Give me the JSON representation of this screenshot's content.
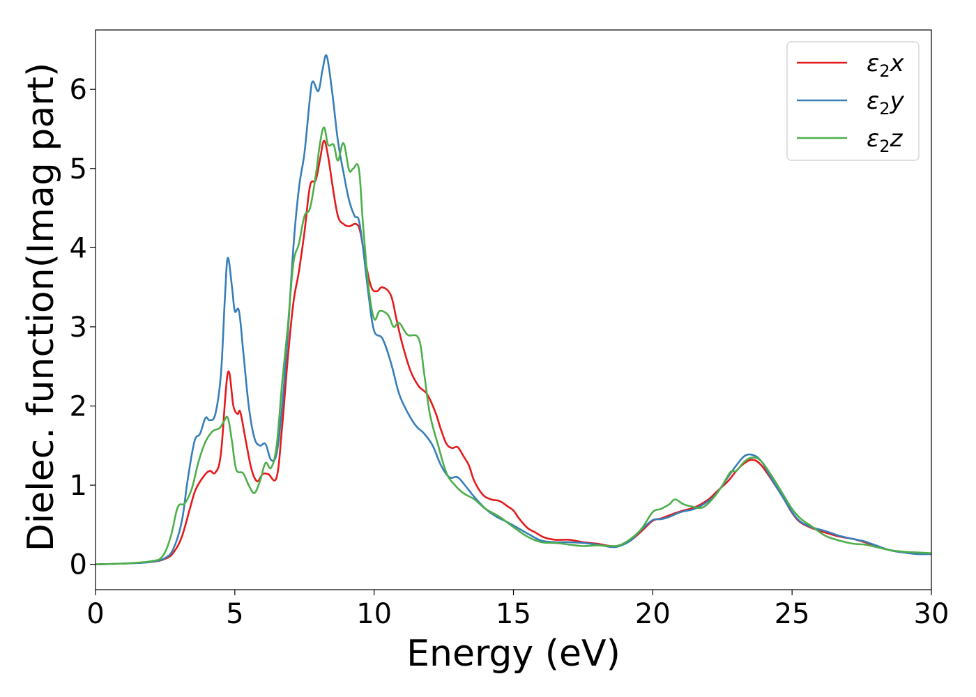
{
  "chart_data": {
    "type": "line",
    "title": "",
    "xlabel": "Energy (eV)",
    "ylabel": "Dielec. function(Imag part)",
    "xlim": [
      0,
      30
    ],
    "ylim": [
      -0.32,
      6.75
    ],
    "xticks": [
      0,
      5,
      10,
      15,
      20,
      25,
      30
    ],
    "yticks": [
      0,
      1,
      2,
      3,
      4,
      5,
      6
    ],
    "xtick_labels": [
      "0",
      "5",
      "10",
      "15",
      "20",
      "25",
      "30"
    ],
    "ytick_labels": [
      "0",
      "1",
      "2",
      "3",
      "4",
      "5",
      "6"
    ],
    "grid": false,
    "legend_position": "top-right",
    "series": [
      {
        "name": "ε2x",
        "legend": {
          "symbol": "ε",
          "sub": "2",
          "var": "x"
        },
        "color": "#e41a1c",
        "points": [
          [
            0,
            0
          ],
          [
            1,
            0.01
          ],
          [
            2,
            0.03
          ],
          [
            2.5,
            0.07
          ],
          [
            2.8,
            0.15
          ],
          [
            3.1,
            0.35
          ],
          [
            3.4,
            0.72
          ],
          [
            3.6,
            0.95
          ],
          [
            3.9,
            1.12
          ],
          [
            4.1,
            1.18
          ],
          [
            4.3,
            1.16
          ],
          [
            4.5,
            1.4
          ],
          [
            4.75,
            2.42
          ],
          [
            4.95,
            2.0
          ],
          [
            5.1,
            1.9
          ],
          [
            5.2,
            1.92
          ],
          [
            5.4,
            1.55
          ],
          [
            5.6,
            1.2
          ],
          [
            5.8,
            1.05
          ],
          [
            6.0,
            1.14
          ],
          [
            6.2,
            1.14
          ],
          [
            6.5,
            1.1
          ],
          [
            6.7,
            1.75
          ],
          [
            6.9,
            2.6
          ],
          [
            7.1,
            3.3
          ],
          [
            7.3,
            3.7
          ],
          [
            7.5,
            4.2
          ],
          [
            7.7,
            4.78
          ],
          [
            7.9,
            4.85
          ],
          [
            8.05,
            5.1
          ],
          [
            8.2,
            5.35
          ],
          [
            8.35,
            5.15
          ],
          [
            8.5,
            4.8
          ],
          [
            8.7,
            4.4
          ],
          [
            8.9,
            4.3
          ],
          [
            9.1,
            4.27
          ],
          [
            9.35,
            4.3
          ],
          [
            9.5,
            4.2
          ],
          [
            9.7,
            3.8
          ],
          [
            9.9,
            3.5
          ],
          [
            10.1,
            3.45
          ],
          [
            10.3,
            3.5
          ],
          [
            10.6,
            3.4
          ],
          [
            10.8,
            3.1
          ],
          [
            11.0,
            2.8
          ],
          [
            11.3,
            2.45
          ],
          [
            11.6,
            2.25
          ],
          [
            11.9,
            2.15
          ],
          [
            12.2,
            1.92
          ],
          [
            12.4,
            1.7
          ],
          [
            12.6,
            1.52
          ],
          [
            12.8,
            1.47
          ],
          [
            13.0,
            1.48
          ],
          [
            13.2,
            1.37
          ],
          [
            13.4,
            1.25
          ],
          [
            13.6,
            1.05
          ],
          [
            13.9,
            0.88
          ],
          [
            14.2,
            0.82
          ],
          [
            14.5,
            0.8
          ],
          [
            14.8,
            0.73
          ],
          [
            15.0,
            0.68
          ],
          [
            15.2,
            0.58
          ],
          [
            15.5,
            0.46
          ],
          [
            15.8,
            0.4
          ],
          [
            16.1,
            0.34
          ],
          [
            16.5,
            0.31
          ],
          [
            17.0,
            0.31
          ],
          [
            17.5,
            0.28
          ],
          [
            18.0,
            0.26
          ],
          [
            18.5,
            0.23
          ],
          [
            18.8,
            0.24
          ],
          [
            19.2,
            0.3
          ],
          [
            19.6,
            0.42
          ],
          [
            20.0,
            0.55
          ],
          [
            20.3,
            0.58
          ],
          [
            20.6,
            0.62
          ],
          [
            21.0,
            0.67
          ],
          [
            21.5,
            0.72
          ],
          [
            22.0,
            0.82
          ],
          [
            22.3,
            0.92
          ],
          [
            22.7,
            1.05
          ],
          [
            23.0,
            1.18
          ],
          [
            23.3,
            1.28
          ],
          [
            23.6,
            1.32
          ],
          [
            23.9,
            1.25
          ],
          [
            24.3,
            1.05
          ],
          [
            24.7,
            0.83
          ],
          [
            25.0,
            0.65
          ],
          [
            25.3,
            0.53
          ],
          [
            25.7,
            0.46
          ],
          [
            26.2,
            0.4
          ],
          [
            26.7,
            0.35
          ],
          [
            27.2,
            0.32
          ],
          [
            27.6,
            0.28
          ],
          [
            28.0,
            0.23
          ],
          [
            28.5,
            0.18
          ],
          [
            29.0,
            0.15
          ],
          [
            29.5,
            0.14
          ],
          [
            30,
            0.13
          ]
        ]
      },
      {
        "name": "ε2y",
        "legend": {
          "symbol": "ε",
          "sub": "2",
          "var": "y"
        },
        "color": "#377eb8",
        "points": [
          [
            0,
            0
          ],
          [
            1,
            0.01
          ],
          [
            2,
            0.03
          ],
          [
            2.5,
            0.08
          ],
          [
            2.8,
            0.2
          ],
          [
            3.1,
            0.55
          ],
          [
            3.3,
            1.05
          ],
          [
            3.55,
            1.55
          ],
          [
            3.75,
            1.65
          ],
          [
            3.95,
            1.85
          ],
          [
            4.1,
            1.82
          ],
          [
            4.3,
            1.9
          ],
          [
            4.5,
            2.4
          ],
          [
            4.65,
            3.4
          ],
          [
            4.75,
            3.87
          ],
          [
            4.9,
            3.5
          ],
          [
            5.0,
            3.2
          ],
          [
            5.15,
            3.2
          ],
          [
            5.3,
            2.7
          ],
          [
            5.5,
            2.0
          ],
          [
            5.7,
            1.6
          ],
          [
            5.9,
            1.5
          ],
          [
            6.1,
            1.52
          ],
          [
            6.3,
            1.32
          ],
          [
            6.5,
            1.4
          ],
          [
            6.7,
            2.0
          ],
          [
            6.9,
            2.9
          ],
          [
            7.1,
            4.0
          ],
          [
            7.3,
            4.75
          ],
          [
            7.5,
            5.2
          ],
          [
            7.7,
            5.9
          ],
          [
            7.8,
            6.1
          ],
          [
            8.0,
            5.98
          ],
          [
            8.15,
            6.25
          ],
          [
            8.3,
            6.42
          ],
          [
            8.5,
            5.95
          ],
          [
            8.7,
            5.35
          ],
          [
            8.9,
            4.95
          ],
          [
            9.1,
            4.6
          ],
          [
            9.3,
            4.4
          ],
          [
            9.45,
            4.35
          ],
          [
            9.6,
            4.0
          ],
          [
            9.8,
            3.4
          ],
          [
            10.0,
            2.95
          ],
          [
            10.3,
            2.85
          ],
          [
            10.6,
            2.55
          ],
          [
            10.9,
            2.15
          ],
          [
            11.2,
            1.92
          ],
          [
            11.5,
            1.75
          ],
          [
            11.8,
            1.65
          ],
          [
            12.1,
            1.5
          ],
          [
            12.4,
            1.25
          ],
          [
            12.7,
            1.1
          ],
          [
            13.0,
            1.1
          ],
          [
            13.3,
            0.98
          ],
          [
            13.6,
            0.85
          ],
          [
            14.0,
            0.7
          ],
          [
            14.4,
            0.6
          ],
          [
            14.8,
            0.53
          ],
          [
            15.2,
            0.45
          ],
          [
            15.6,
            0.37
          ],
          [
            16.0,
            0.3
          ],
          [
            16.5,
            0.28
          ],
          [
            17.0,
            0.28
          ],
          [
            17.5,
            0.27
          ],
          [
            18.0,
            0.25
          ],
          [
            18.5,
            0.22
          ],
          [
            18.8,
            0.23
          ],
          [
            19.2,
            0.3
          ],
          [
            19.6,
            0.44
          ],
          [
            20.0,
            0.56
          ],
          [
            20.3,
            0.57
          ],
          [
            20.6,
            0.6
          ],
          [
            21.0,
            0.66
          ],
          [
            21.5,
            0.7
          ],
          [
            22.0,
            0.8
          ],
          [
            22.3,
            0.9
          ],
          [
            22.7,
            1.1
          ],
          [
            23.0,
            1.25
          ],
          [
            23.3,
            1.37
          ],
          [
            23.6,
            1.38
          ],
          [
            23.9,
            1.3
          ],
          [
            24.3,
            1.06
          ],
          [
            24.7,
            0.83
          ],
          [
            25.0,
            0.66
          ],
          [
            25.3,
            0.54
          ],
          [
            25.7,
            0.47
          ],
          [
            26.2,
            0.42
          ],
          [
            26.7,
            0.36
          ],
          [
            27.2,
            0.32
          ],
          [
            27.6,
            0.29
          ],
          [
            28.0,
            0.24
          ],
          [
            28.5,
            0.18
          ],
          [
            29.0,
            0.15
          ],
          [
            29.5,
            0.13
          ],
          [
            30,
            0.13
          ]
        ]
      },
      {
        "name": "ε2z",
        "legend": {
          "symbol": "ε",
          "sub": "2",
          "var": "z"
        },
        "color": "#4daf4a",
        "points": [
          [
            0,
            0
          ],
          [
            1,
            0.01
          ],
          [
            2,
            0.04
          ],
          [
            2.4,
            0.1
          ],
          [
            2.7,
            0.35
          ],
          [
            2.95,
            0.72
          ],
          [
            3.2,
            0.77
          ],
          [
            3.45,
            0.95
          ],
          [
            3.7,
            1.3
          ],
          [
            3.95,
            1.55
          ],
          [
            4.2,
            1.68
          ],
          [
            4.45,
            1.72
          ],
          [
            4.6,
            1.8
          ],
          [
            4.75,
            1.85
          ],
          [
            4.9,
            1.55
          ],
          [
            5.05,
            1.2
          ],
          [
            5.3,
            1.15
          ],
          [
            5.5,
            1.0
          ],
          [
            5.7,
            0.9
          ],
          [
            5.9,
            1.05
          ],
          [
            6.1,
            1.28
          ],
          [
            6.3,
            1.22
          ],
          [
            6.5,
            1.5
          ],
          [
            6.7,
            2.3
          ],
          [
            6.9,
            3.0
          ],
          [
            7.1,
            3.8
          ],
          [
            7.3,
            4.05
          ],
          [
            7.5,
            4.4
          ],
          [
            7.7,
            4.5
          ],
          [
            7.9,
            4.9
          ],
          [
            8.05,
            5.3
          ],
          [
            8.2,
            5.52
          ],
          [
            8.35,
            5.3
          ],
          [
            8.55,
            5.3
          ],
          [
            8.7,
            5.1
          ],
          [
            8.9,
            5.32
          ],
          [
            9.1,
            4.98
          ],
          [
            9.25,
            5.0
          ],
          [
            9.45,
            5.0
          ],
          [
            9.6,
            4.3
          ],
          [
            9.8,
            3.5
          ],
          [
            10.0,
            3.1
          ],
          [
            10.2,
            3.2
          ],
          [
            10.5,
            3.15
          ],
          [
            10.7,
            3.0
          ],
          [
            10.9,
            3.05
          ],
          [
            11.2,
            2.9
          ],
          [
            11.6,
            2.85
          ],
          [
            11.8,
            2.4
          ],
          [
            12.0,
            1.9
          ],
          [
            12.3,
            1.5
          ],
          [
            12.6,
            1.15
          ],
          [
            12.9,
            1.0
          ],
          [
            13.2,
            0.9
          ],
          [
            13.6,
            0.82
          ],
          [
            14.0,
            0.7
          ],
          [
            14.5,
            0.6
          ],
          [
            15.0,
            0.47
          ],
          [
            15.5,
            0.35
          ],
          [
            16.0,
            0.28
          ],
          [
            16.5,
            0.27
          ],
          [
            17.0,
            0.25
          ],
          [
            17.5,
            0.23
          ],
          [
            18.0,
            0.24
          ],
          [
            18.5,
            0.23
          ],
          [
            18.8,
            0.24
          ],
          [
            19.2,
            0.32
          ],
          [
            19.6,
            0.45
          ],
          [
            20.0,
            0.66
          ],
          [
            20.3,
            0.7
          ],
          [
            20.6,
            0.76
          ],
          [
            20.8,
            0.82
          ],
          [
            21.1,
            0.76
          ],
          [
            21.4,
            0.73
          ],
          [
            21.8,
            0.72
          ],
          [
            22.2,
            0.85
          ],
          [
            22.5,
            1.0
          ],
          [
            22.8,
            1.17
          ],
          [
            23.0,
            1.18
          ],
          [
            23.3,
            1.3
          ],
          [
            23.6,
            1.35
          ],
          [
            23.9,
            1.3
          ],
          [
            24.3,
            1.1
          ],
          [
            24.7,
            0.87
          ],
          [
            25.0,
            0.7
          ],
          [
            25.3,
            0.58
          ],
          [
            25.7,
            0.48
          ],
          [
            26.2,
            0.36
          ],
          [
            26.7,
            0.3
          ],
          [
            27.2,
            0.26
          ],
          [
            27.6,
            0.25
          ],
          [
            28.0,
            0.22
          ],
          [
            28.5,
            0.18
          ],
          [
            29.0,
            0.16
          ],
          [
            29.5,
            0.15
          ],
          [
            30,
            0.14
          ]
        ]
      }
    ]
  }
}
